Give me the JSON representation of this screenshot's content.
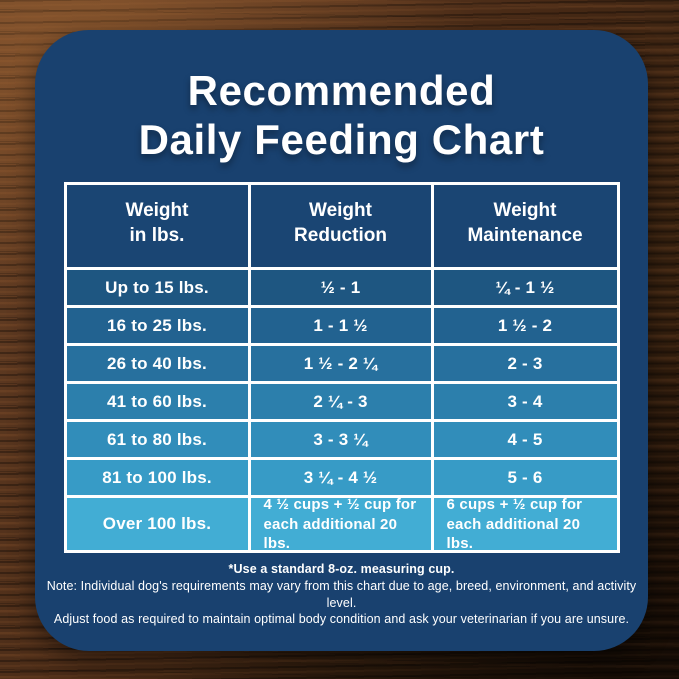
{
  "title": {
    "line1": "Recommended",
    "line2": "Daily Feeding Chart"
  },
  "chart_data": {
    "type": "table",
    "title": "Recommended Daily Feeding Chart",
    "columns": [
      "Weight in lbs.",
      "Weight Reduction",
      "Weight Maintenance"
    ],
    "columns_display": [
      "Weight\nin lbs.",
      "Weight\nReduction",
      "Weight\nMaintenance"
    ],
    "rows": [
      [
        "Up to 15 lbs.",
        "½ - 1",
        "¼ - 1 ½"
      ],
      [
        "16 to 25 lbs.",
        "1 - 1 ½",
        "1 ½ - 2"
      ],
      [
        "26 to 40 lbs.",
        "1 ½ - 2 ¼",
        "2 - 3"
      ],
      [
        "41 to 60 lbs.",
        "2 ¼ - 3",
        "3 - 4"
      ],
      [
        "61 to 80 lbs.",
        "3 - 3 ¼",
        "4 - 5"
      ],
      [
        "81 to 100 lbs.",
        "3 ¼ - 4 ½",
        "5 - 6"
      ],
      [
        "Over 100 lbs.",
        "4 ½ cups + ½ cup for each additional 20 lbs.",
        "6 cups + ½ cup for each additional 20 lbs."
      ]
    ],
    "row_colors": [
      "#1E5681",
      "#226290",
      "#27709E",
      "#2C7FAC",
      "#318DBA",
      "#379BC6",
      "#42ADD4"
    ]
  },
  "footer": {
    "footnote": "*Use a standard 8-oz. measuring cup.",
    "note_line1": "Note: Individual dog's requirements may vary from this chart due to age, breed, environment, and activity level.",
    "note_line2": "Adjust food as required to maintain optimal body condition and ask your veterinarian if you are unsure."
  },
  "colors": {
    "card_bg": "#19416F",
    "header_cell_bg": "#1A4573",
    "table_border": "#FFFFFF",
    "title_text": "#FFFFFF"
  }
}
